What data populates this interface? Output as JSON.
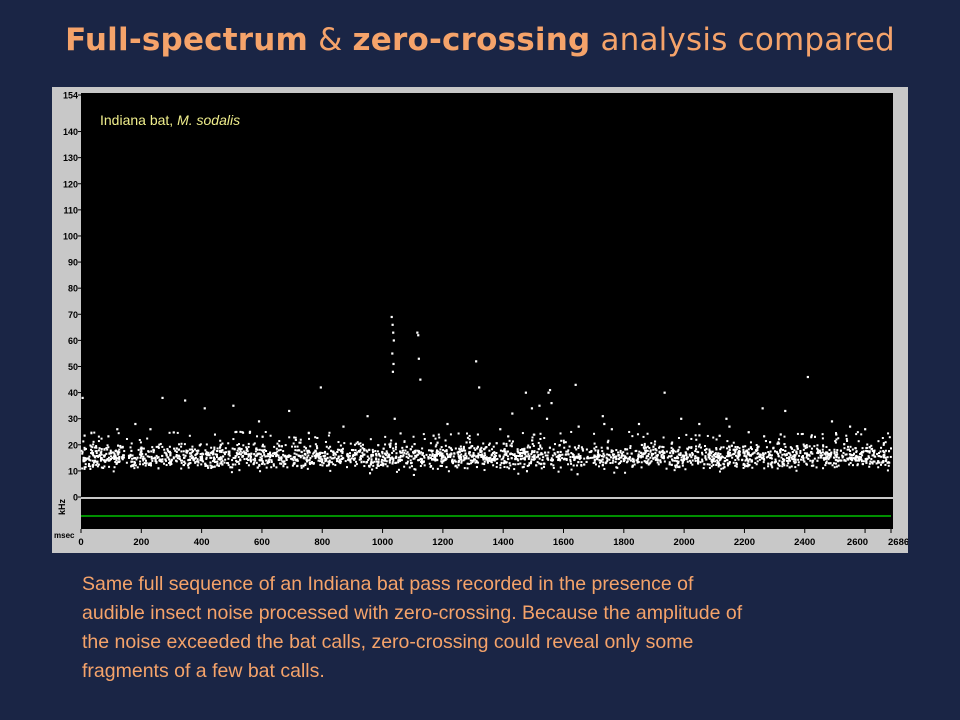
{
  "slide": {
    "title_part1": "Full-spectrum",
    "title_part2": " & ",
    "title_part3": "zero-crossing",
    "title_part4": " analysis compared",
    "caption_lines": [
      "Same full sequence of an Indiana bat pass recorded in the presence of",
      "audible insect noise processed with zero-crossing. Because the amplitude of",
      "the noise exceeded the bat calls, zero-crossing could reveal only some",
      "fragments of a few bat calls."
    ]
  },
  "chart_data": {
    "type": "scatter",
    "annotation_prefix": "Indiana bat, ",
    "annotation_species": "M. sodalis",
    "ylabel": "kHz",
    "xlabel": "msec",
    "xlim": [
      0,
      2686
    ],
    "ylim": [
      0,
      154
    ],
    "y_ticks": [
      "154",
      "140",
      "130",
      "120",
      "110",
      "100",
      "90",
      "80",
      "70",
      "60",
      "50",
      "40",
      "30",
      "20",
      "10",
      "0"
    ],
    "x_ticks": [
      "0",
      "200",
      "400",
      "600",
      "800",
      "1000",
      "1200",
      "1400",
      "1600",
      "1800",
      "2000",
      "2200",
      "2400",
      "2600",
      "2686"
    ],
    "grid": false,
    "colors": {
      "points": "#ffffff",
      "annotation": "#f0ee8c",
      "plot_bg": "#000000",
      "frame": "#c8c8c8",
      "lower_line": "#00c000"
    },
    "noise_band": {
      "x_range": [
        0,
        2686
      ],
      "y_center_khz": 15.5,
      "y_spread_khz": 3.5
    },
    "sparse_points": [
      [
        5,
        38
      ],
      [
        345,
        37
      ],
      [
        270,
        38
      ],
      [
        230,
        26
      ],
      [
        410,
        34
      ],
      [
        505,
        35
      ],
      [
        690,
        33
      ],
      [
        795,
        42
      ],
      [
        950,
        31
      ],
      [
        1030,
        69
      ],
      [
        1033,
        66
      ],
      [
        1035,
        63
      ],
      [
        1037,
        60
      ],
      [
        1032,
        55
      ],
      [
        1036,
        51
      ],
      [
        1034,
        48
      ],
      [
        1040,
        30
      ],
      [
        1115,
        63
      ],
      [
        1118,
        62
      ],
      [
        1120,
        53
      ],
      [
        1125,
        45
      ],
      [
        1310,
        52
      ],
      [
        1320,
        42
      ],
      [
        1430,
        32
      ],
      [
        1475,
        40
      ],
      [
        1495,
        34
      ],
      [
        1520,
        35
      ],
      [
        1550,
        40
      ],
      [
        1555,
        41
      ],
      [
        1560,
        36
      ],
      [
        1545,
        30
      ],
      [
        1640,
        43
      ],
      [
        1730,
        31
      ],
      [
        1735,
        28
      ],
      [
        1935,
        40
      ],
      [
        1990,
        30
      ],
      [
        2050,
        28
      ],
      [
        2140,
        30
      ],
      [
        2260,
        34
      ],
      [
        2335,
        33
      ],
      [
        2410,
        46
      ],
      [
        2490,
        29
      ],
      [
        2600,
        26
      ],
      [
        180,
        28
      ],
      [
        590,
        29
      ],
      [
        870,
        27
      ],
      [
        1215,
        28
      ],
      [
        1390,
        26
      ],
      [
        1650,
        27
      ],
      [
        1850,
        28
      ],
      [
        2150,
        27
      ],
      [
        2550,
        27
      ],
      [
        560,
        25
      ],
      [
        1760,
        26
      ],
      [
        2320,
        24
      ],
      [
        120,
        26
      ]
    ]
  }
}
